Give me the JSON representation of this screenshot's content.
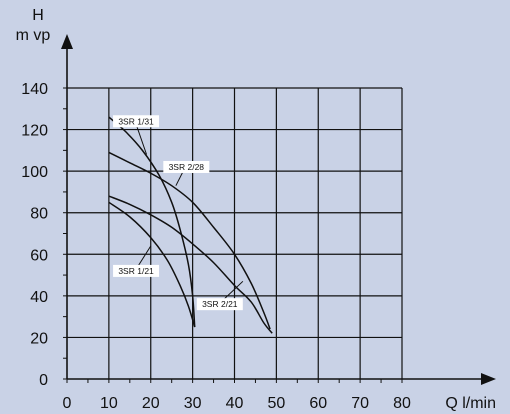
{
  "chart_data": {
    "type": "line",
    "x_axis": {
      "label": "Q l/min",
      "range": [
        0,
        80
      ],
      "ticks": [
        0,
        10,
        20,
        30,
        40,
        50,
        60,
        70,
        80
      ]
    },
    "y_axis": {
      "label_line1": "H",
      "label_line2": "m vp",
      "range": [
        0,
        140
      ],
      "ticks": [
        0,
        20,
        40,
        60,
        80,
        100,
        120,
        140
      ]
    },
    "grid": true,
    "series": [
      {
        "name": "3SR 1/31",
        "points": [
          [
            10,
            126
          ],
          [
            14,
            119
          ],
          [
            18,
            110
          ],
          [
            22,
            98
          ],
          [
            25,
            85
          ],
          [
            27,
            72
          ],
          [
            29,
            55
          ],
          [
            30,
            40
          ],
          [
            30.5,
            25
          ]
        ],
        "label_at": [
          11,
          124
        ],
        "leader_to": [
          19,
          108
        ]
      },
      {
        "name": "3SR 2/28",
        "points": [
          [
            10,
            109
          ],
          [
            15,
            104
          ],
          [
            20,
            99
          ],
          [
            25,
            93
          ],
          [
            30,
            85
          ],
          [
            35,
            73
          ],
          [
            40,
            60
          ],
          [
            44,
            46
          ],
          [
            47,
            32
          ],
          [
            48.5,
            24
          ]
        ],
        "label_at": [
          23,
          102
        ],
        "leader_to": [
          26,
          93
        ]
      },
      {
        "name": "3SR 1/21",
        "points": [
          [
            10,
            85
          ],
          [
            15,
            78
          ],
          [
            20,
            68
          ],
          [
            24,
            57
          ],
          [
            27,
            45
          ],
          [
            29,
            35
          ],
          [
            30.5,
            25
          ]
        ],
        "label_at": [
          11,
          52
        ],
        "leader_to": [
          20,
          64
        ]
      },
      {
        "name": "3SR 2/21",
        "points": [
          [
            10,
            88
          ],
          [
            15,
            84
          ],
          [
            20,
            79
          ],
          [
            25,
            73
          ],
          [
            30,
            65
          ],
          [
            35,
            56
          ],
          [
            40,
            45
          ],
          [
            44,
            37
          ],
          [
            47,
            27
          ],
          [
            49,
            22
          ]
        ],
        "label_at": [
          31,
          36
        ],
        "leader_to": [
          42,
          47
        ]
      }
    ]
  }
}
